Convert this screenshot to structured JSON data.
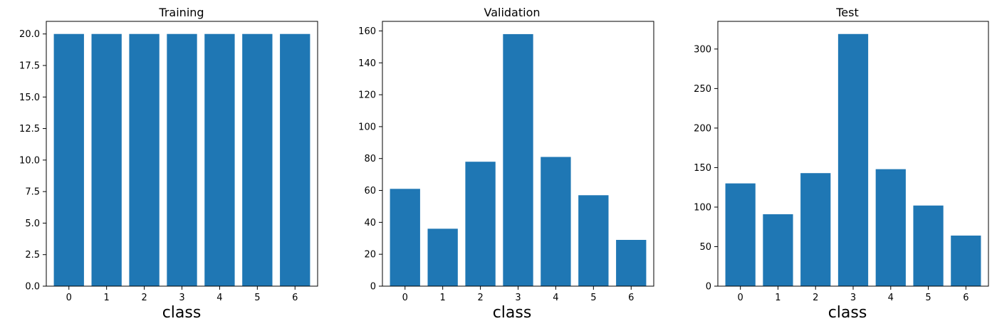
{
  "colors": {
    "bar": "#1f77b4",
    "axis": "#000000",
    "background": "#ffffff"
  },
  "chart_data": [
    {
      "type": "bar",
      "title": "Training",
      "xlabel": "class",
      "ylabel": "",
      "categories": [
        "0",
        "1",
        "2",
        "3",
        "4",
        "5",
        "6"
      ],
      "values": [
        20,
        20,
        20,
        20,
        20,
        20,
        20
      ],
      "ylim": [
        0,
        21
      ],
      "yticks": [
        0,
        2.5,
        5,
        7.5,
        10,
        12.5,
        15,
        17.5,
        20
      ],
      "ytick_labels": [
        "0.0",
        "2.5",
        "5.0",
        "7.5",
        "10.0",
        "12.5",
        "15.0",
        "17.5",
        "20.0"
      ],
      "grid": false,
      "legend": "none"
    },
    {
      "type": "bar",
      "title": "Validation",
      "xlabel": "class",
      "ylabel": "",
      "categories": [
        "0",
        "1",
        "2",
        "3",
        "4",
        "5",
        "6"
      ],
      "values": [
        61,
        36,
        78,
        158,
        81,
        57,
        29
      ],
      "ylim": [
        0,
        166
      ],
      "yticks": [
        0,
        20,
        40,
        60,
        80,
        100,
        120,
        140,
        160
      ],
      "ytick_labels": [
        "0",
        "20",
        "40",
        "60",
        "80",
        "100",
        "120",
        "140",
        "160"
      ],
      "grid": false,
      "legend": "none"
    },
    {
      "type": "bar",
      "title": "Test",
      "xlabel": "class",
      "ylabel": "",
      "categories": [
        "0",
        "1",
        "2",
        "3",
        "4",
        "5",
        "6"
      ],
      "values": [
        130,
        91,
        143,
        319,
        148,
        102,
        64
      ],
      "ylim": [
        0,
        335
      ],
      "yticks": [
        0,
        50,
        100,
        150,
        200,
        250,
        300
      ],
      "ytick_labels": [
        "0",
        "50",
        "100",
        "150",
        "200",
        "250",
        "300"
      ],
      "grid": false,
      "legend": "none"
    }
  ]
}
